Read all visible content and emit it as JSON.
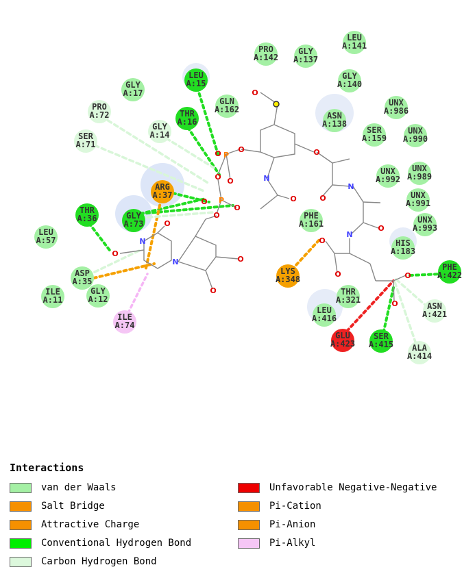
{
  "colors": {
    "vdw": "#a4f0a4",
    "hbond": "#22dd22",
    "charge": "#f5a000",
    "unfavorable": "#ee2222",
    "alkyl": "#f5c6f5",
    "chbond": "#dcf8dc",
    "halo": "#dde6f8"
  },
  "residues": [
    {
      "id": "LEU:A:141",
      "line1": "LEU",
      "line2": "A:141",
      "type": "vdw"
    },
    {
      "id": "PRO:A:142",
      "line1": "PRO",
      "line2": "A:142",
      "type": "vdw"
    },
    {
      "id": "GLY:A:137",
      "line1": "GLY",
      "line2": "A:137",
      "type": "vdw"
    },
    {
      "id": "LEU:A:15",
      "line1": "LEU",
      "line2": "A:15",
      "type": "hbond"
    },
    {
      "id": "GLY:A:17",
      "line1": "GLY",
      "line2": "A:17",
      "type": "vdw"
    },
    {
      "id": "GLY:A:140",
      "line1": "GLY",
      "line2": "A:140",
      "type": "vdw"
    },
    {
      "id": "PRO:A:72",
      "line1": "PRO",
      "line2": "A:72",
      "type": "chbond"
    },
    {
      "id": "GLN:A:162",
      "line1": "GLN",
      "line2": "A:162",
      "type": "vdw"
    },
    {
      "id": "THR:A:16",
      "line1": "THR",
      "line2": "A:16",
      "type": "hbond"
    },
    {
      "id": "ASN:A:138",
      "line1": "ASN",
      "line2": "A:138",
      "type": "vdw"
    },
    {
      "id": "UNX:A:986",
      "line1": "UNX",
      "line2": "A:986",
      "type": "vdw"
    },
    {
      "id": "SER:A:71",
      "line1": "SER",
      "line2": "A:71",
      "type": "chbond"
    },
    {
      "id": "GLY:A:14",
      "line1": "GLY",
      "line2": "A:14",
      "type": "chbond"
    },
    {
      "id": "SER:A:159",
      "line1": "SER",
      "line2": "A:159",
      "type": "vdw"
    },
    {
      "id": "UNX:A:990",
      "line1": "UNX",
      "line2": "A:990",
      "type": "vdw"
    },
    {
      "id": "UNX:A:992",
      "line1": "UNX",
      "line2": "A:992",
      "type": "vdw"
    },
    {
      "id": "UNX:A:989",
      "line1": "UNX",
      "line2": "A:989",
      "type": "vdw"
    },
    {
      "id": "ARG:A:37",
      "line1": "ARG",
      "line2": "A:37",
      "type": "charge"
    },
    {
      "id": "UNX:A:991",
      "line1": "UNX",
      "line2": "A:991",
      "type": "vdw"
    },
    {
      "id": "THR:A:36",
      "line1": "THR",
      "line2": "A:36",
      "type": "hbond"
    },
    {
      "id": "GLY:A:73",
      "line1": "GLY",
      "line2": "A:73",
      "type": "hbond"
    },
    {
      "id": "PHE:A:161",
      "line1": "PHE",
      "line2": "A:161",
      "type": "vdw"
    },
    {
      "id": "UNX:A:993",
      "line1": "UNX",
      "line2": "A:993",
      "type": "vdw"
    },
    {
      "id": "LEU:A:57",
      "line1": "LEU",
      "line2": "A:57",
      "type": "vdw"
    },
    {
      "id": "HIS:A:183",
      "line1": "HIS",
      "line2": "A:183",
      "type": "vdw"
    },
    {
      "id": "ASP:A:35",
      "line1": "ASP",
      "line2": "A:35",
      "type": "vdw"
    },
    {
      "id": "LYS:A:348",
      "line1": "LYS",
      "line2": "A:348",
      "type": "charge"
    },
    {
      "id": "PHE:A:422",
      "line1": "PHE",
      "line2": "A:422",
      "type": "hbond"
    },
    {
      "id": "ILE:A:11",
      "line1": "ILE",
      "line2": "A:11",
      "type": "vdw"
    },
    {
      "id": "GLY:A:12",
      "line1": "GLY",
      "line2": "A:12",
      "type": "vdw"
    },
    {
      "id": "THR:A:321",
      "line1": "THR",
      "line2": "A:321",
      "type": "vdw"
    },
    {
      "id": "ASN:A:421",
      "line1": "ASN",
      "line2": "A:421",
      "type": "chbond"
    },
    {
      "id": "LEU:A:416",
      "line1": "LEU",
      "line2": "A:416",
      "type": "vdw"
    },
    {
      "id": "ILE:A:74",
      "line1": "ILE",
      "line2": "A:74",
      "type": "alkyl"
    },
    {
      "id": "GLU:A:423",
      "line1": "GLU",
      "line2": "A:423",
      "type": "unfavorable"
    },
    {
      "id": "SER:A:415",
      "line1": "SER",
      "line2": "A:415",
      "type": "hbond"
    },
    {
      "id": "ALA:A:414",
      "line1": "ALA",
      "line2": "A:414",
      "type": "chbond"
    }
  ],
  "atoms": {
    "oxygen": "O",
    "nitrogen": "N",
    "phosphorus": "P"
  },
  "legend": {
    "title": "Interactions",
    "items": [
      {
        "label": "van der Waals",
        "color": "#a4f0a4"
      },
      {
        "label": "Salt Bridge",
        "color": "#f59000"
      },
      {
        "label": "Attractive Charge",
        "color": "#f59000"
      },
      {
        "label": "Conventional Hydrogen Bond",
        "color": "#00ee00"
      },
      {
        "label": "Carbon Hydrogen Bond",
        "color": "#dcf8dc"
      },
      {
        "label": "Unfavorable Negative-Negative",
        "color": "#ee0000"
      },
      {
        "label": "Pi-Cation",
        "color": "#f59000"
      },
      {
        "label": "Pi-Anion",
        "color": "#f59000"
      },
      {
        "label": "Pi-Alkyl",
        "color": "#f5c6f5"
      }
    ]
  }
}
